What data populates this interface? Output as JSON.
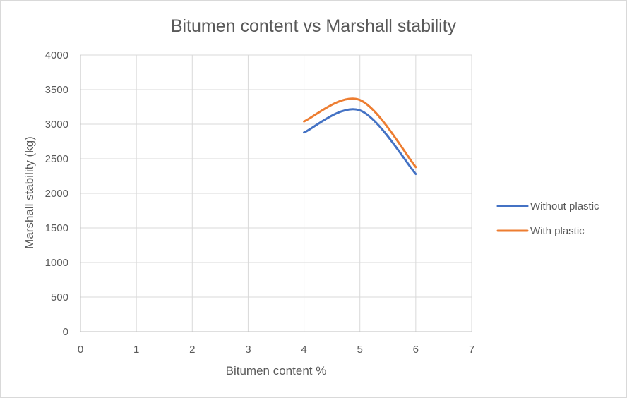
{
  "chart_data": {
    "type": "scatter",
    "title": "Bitumen content vs Marshall stability",
    "xlabel": "Bitumen content %",
    "ylabel": "Marshall stability (kg)",
    "xlim": [
      0,
      7
    ],
    "ylim": [
      0,
      4000
    ],
    "x_ticks": [
      0,
      1,
      2,
      3,
      4,
      5,
      6,
      7
    ],
    "y_ticks": [
      0,
      500,
      1000,
      1500,
      2000,
      2500,
      3000,
      3500,
      4000
    ],
    "grid": true,
    "smooth_lines": true,
    "legend_position": "right",
    "series": [
      {
        "name": "Without plastic",
        "color": "#4472C4",
        "x": [
          4,
          5,
          6
        ],
        "y": [
          2880,
          3200,
          2280
        ]
      },
      {
        "name": "With plastic",
        "color": "#ED7D31",
        "x": [
          4,
          5,
          6
        ],
        "y": [
          3040,
          3350,
          2380
        ]
      }
    ]
  }
}
